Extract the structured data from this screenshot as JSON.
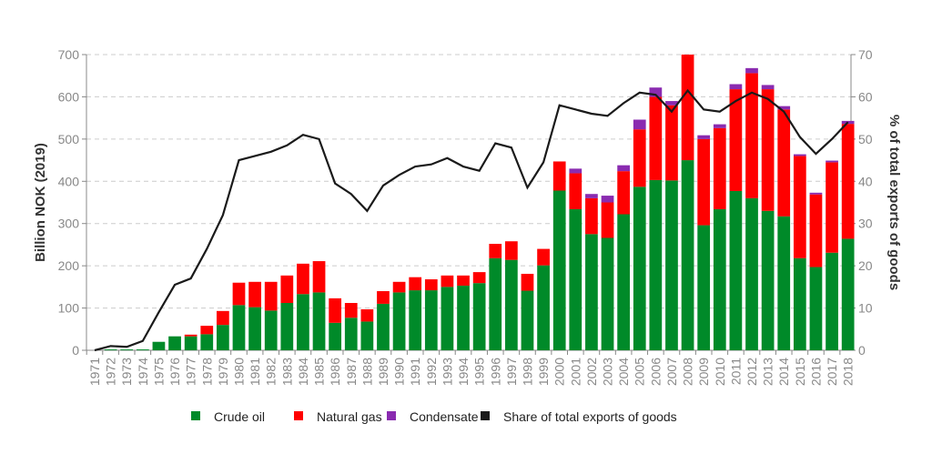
{
  "chart_data": {
    "type": "bar",
    "stacked": true,
    "title": "",
    "xlabel": "",
    "ylabel": "Billion NOK (2019)",
    "ylabel_right": "% of total exports of goods",
    "ylim": [
      0,
      700
    ],
    "ylim_right": [
      0,
      70
    ],
    "yticks": [
      0,
      100,
      200,
      300,
      400,
      500,
      600,
      700
    ],
    "yticks_right": [
      0,
      10,
      20,
      30,
      40,
      50,
      60,
      70
    ],
    "grid": true,
    "legend_position": "bottom",
    "categories": [
      "1971",
      "1972",
      "1973",
      "1974",
      "1975",
      "1976",
      "1977",
      "1978",
      "1979",
      "1980",
      "1981",
      "1982",
      "1983",
      "1984",
      "1985",
      "1986",
      "1987",
      "1988",
      "1989",
      "1990",
      "1991",
      "1992",
      "1993",
      "1994",
      "1995",
      "1996",
      "1997",
      "1998",
      "1999",
      "2000",
      "2001",
      "2002",
      "2003",
      "2004",
      "2005",
      "2006",
      "2007",
      "2008",
      "2009",
      "2010",
      "2011",
      "2012",
      "2013",
      "2014",
      "2015",
      "2016",
      "2017",
      "2018"
    ],
    "series": [
      {
        "name": "Crude oil",
        "color": "#008a29",
        "type": "bar",
        "values": [
          0,
          2,
          2,
          2,
          20,
          33,
          33,
          38,
          60,
          107,
          102,
          94,
          112,
          133,
          137,
          65,
          77,
          68,
          110,
          137,
          142,
          142,
          150,
          153,
          159,
          218,
          214,
          141,
          201,
          378,
          334,
          275,
          266,
          322,
          387,
          403,
          402,
          450,
          296,
          334,
          377,
          360,
          330,
          317,
          218,
          197,
          231,
          264
        ]
      },
      {
        "name": "Natural gas",
        "color": "#ff0000",
        "type": "bar",
        "values": [
          0,
          0,
          0,
          0,
          0,
          0,
          4,
          20,
          33,
          53,
          60,
          68,
          65,
          72,
          74,
          58,
          35,
          29,
          30,
          25,
          31,
          26,
          27,
          24,
          26,
          34,
          44,
          40,
          39,
          69,
          85,
          85,
          84,
          102,
          136,
          197,
          178,
          252,
          204,
          192,
          241,
          296,
          288,
          253,
          242,
          172,
          214,
          272
        ]
      },
      {
        "name": "Condensate",
        "color": "#8a2bb0",
        "type": "bar",
        "values": [
          0,
          0,
          0,
          0,
          0,
          0,
          0,
          0,
          0,
          0,
          0,
          0,
          0,
          0,
          0,
          0,
          0,
          0,
          0,
          0,
          0,
          0,
          0,
          0,
          0,
          0,
          0,
          0,
          0,
          0,
          11,
          10,
          16,
          14,
          23,
          22,
          10,
          0,
          9,
          9,
          12,
          12,
          10,
          8,
          4,
          4,
          4,
          7
        ]
      },
      {
        "name": "Share of total exports of goods",
        "color": "#1a1a1a",
        "type": "line",
        "axis": "right",
        "values": [
          0,
          1,
          0.8,
          2.2,
          9,
          15.5,
          17,
          24,
          32,
          45,
          46,
          47,
          48.5,
          51,
          50,
          39.5,
          37,
          33,
          39,
          41.5,
          43.5,
          44,
          45.5,
          43.5,
          42.5,
          49,
          48,
          38.5,
          44.5,
          58,
          57,
          56,
          55.5,
          58.5,
          61,
          60.5,
          56.5,
          61.5,
          57,
          56.5,
          59,
          61,
          59.5,
          56.5,
          50.5,
          46.5,
          50,
          54
        ]
      }
    ]
  }
}
